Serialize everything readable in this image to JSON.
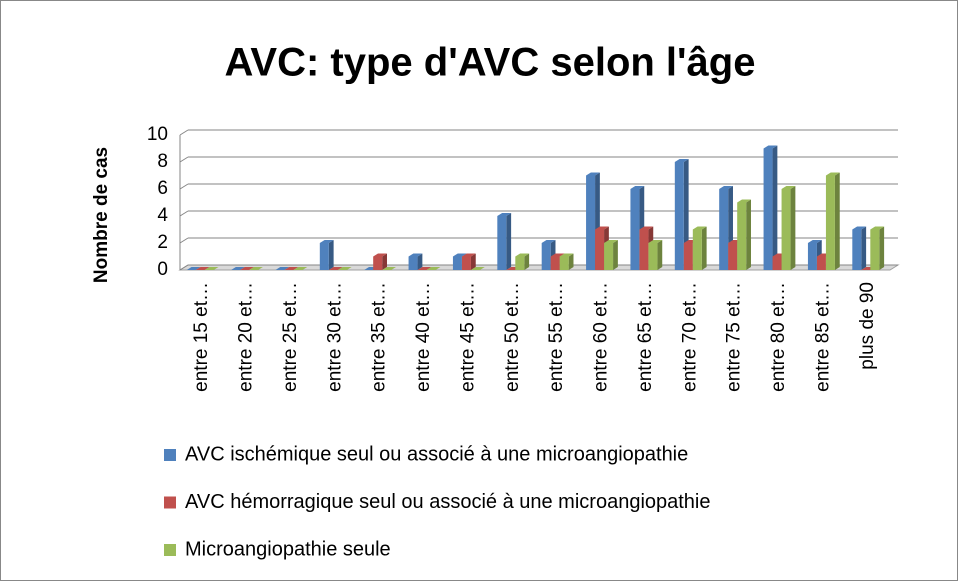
{
  "chart_data": {
    "type": "bar3d",
    "title": "AVC: type d'AVC selon l'âge",
    "y_label": "Nombre de cas",
    "categories": [
      "entre 15 et…",
      "entre 20 et…",
      "entre 25 et…",
      "entre 30 et…",
      "entre 35 et…",
      "entre 40 et…",
      "entre 45 et…",
      "entre 50 et…",
      "entre 55 et…",
      "entre 60 et…",
      "entre 65 et…",
      "entre 70 et…",
      "entre 75 et…",
      "entre 80 et…",
      "entre 85 et…",
      "plus de 90"
    ],
    "series": [
      {
        "name": "AVC ischémique seul ou associé à une microangiopathie",
        "color": "#4f81bd",
        "values": [
          0,
          0,
          0,
          2,
          0,
          1,
          1,
          4,
          2,
          7,
          6,
          8,
          6,
          9,
          2,
          3
        ]
      },
      {
        "name": "AVC hémorragique seul ou associé à une microangiopathie",
        "color": "#c0504d",
        "values": [
          0,
          0,
          0,
          0,
          1,
          0,
          1,
          0,
          1,
          3,
          3,
          2,
          2,
          1,
          1,
          0
        ]
      },
      {
        "name": "Microangiopathie seule",
        "color": "#9bbb59",
        "values": [
          0,
          0,
          0,
          0,
          0,
          0,
          0,
          1,
          1,
          2,
          2,
          3,
          5,
          6,
          7,
          3
        ]
      }
    ],
    "ylim": [
      0,
      10
    ],
    "yticks": [
      0,
      2,
      4,
      6,
      8,
      10
    ],
    "grid": true,
    "legend": "bottom"
  }
}
